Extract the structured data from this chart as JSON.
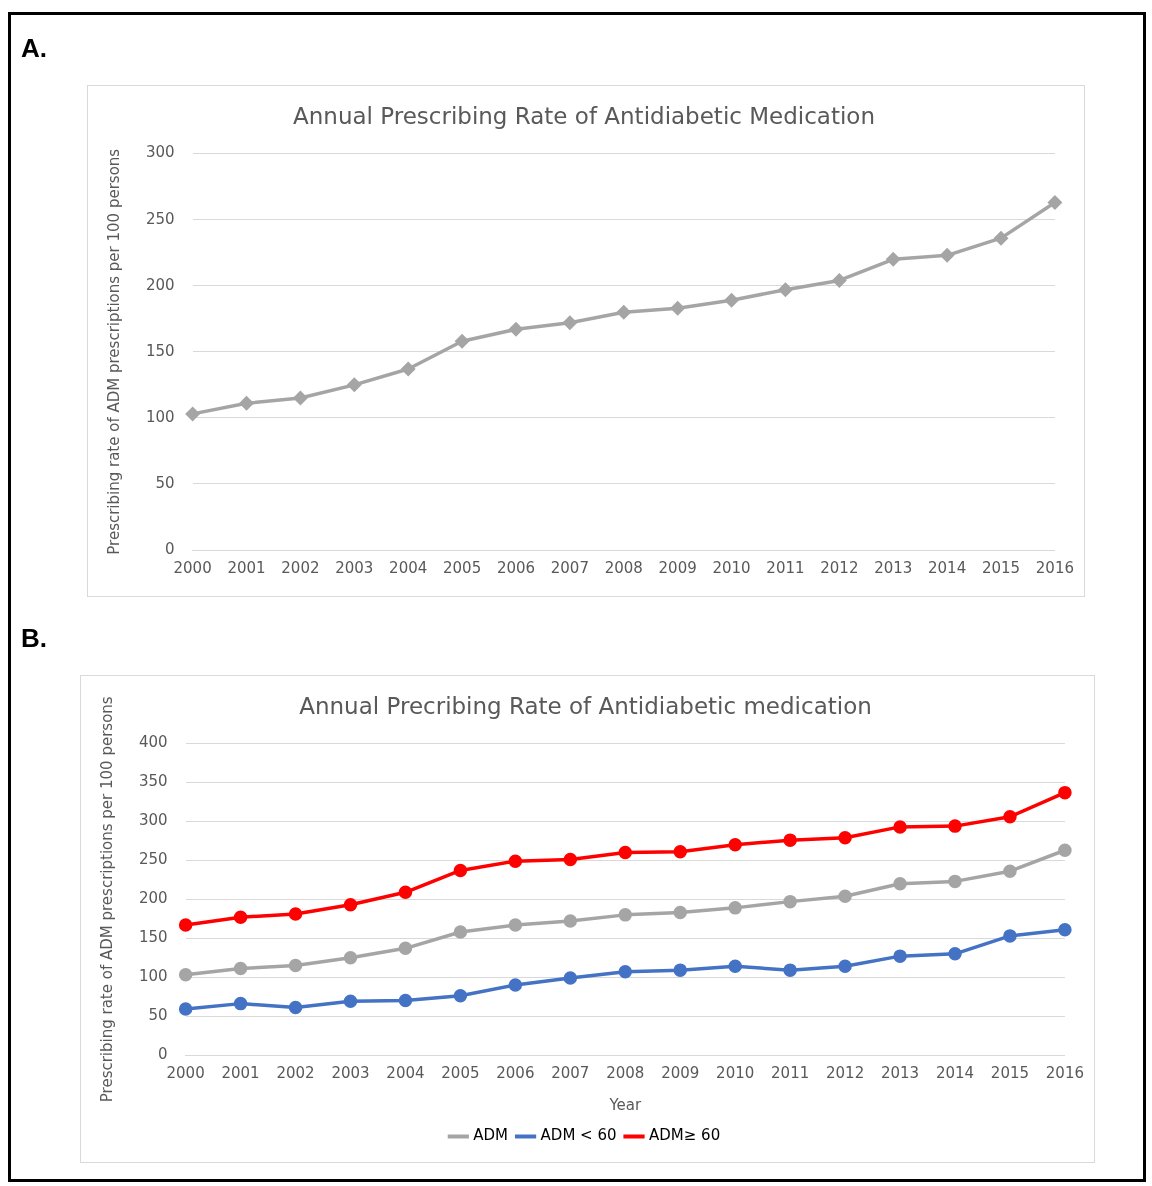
{
  "chart_data": [
    {
      "type": "line",
      "title": "Annual Prescribing Rate of Antidiabetic Medication",
      "ylabel": "Prescribing rate of ADM prescriptions per 100 persons",
      "annotations": [
        "A."
      ],
      "categories": [
        "2000",
        "2001",
        "2002",
        "2003",
        "2004",
        "2005",
        "2006",
        "2007",
        "2008",
        "2009",
        "2010",
        "2011",
        "2012",
        "2013",
        "2014",
        "2015",
        "2016"
      ],
      "series": [
        {
          "color": "#a5a5a5",
          "values": [
            103,
            111,
            115,
            125,
            137,
            158,
            167,
            172,
            180,
            183,
            189,
            197,
            204,
            220,
            223,
            236,
            263
          ]
        }
      ],
      "ylim": [
        0,
        300
      ],
      "yticks": [
        0,
        50,
        100,
        150,
        200,
        250,
        300
      ],
      "grid": "y",
      "marker": "diamond",
      "line_style": "solid"
    },
    {
      "type": "line",
      "title": "Annual Precribing Rate of Antidiabetic medication",
      "xlabel": "Year",
      "ylabel": "Prescribing rate of ADM prescriptions per 100 persons",
      "annotations": [
        "B."
      ],
      "categories": [
        "2000",
        "2001",
        "2002",
        "2003",
        "2004",
        "2005",
        "2006",
        "2007",
        "2008",
        "2009",
        "2010",
        "2011",
        "2012",
        "2013",
        "2014",
        "2015",
        "2016"
      ],
      "series": [
        {
          "name": "ADM",
          "color": "#a5a5a5",
          "values": [
            103,
            111,
            115,
            125,
            137,
            158,
            167,
            172,
            180,
            183,
            189,
            197,
            204,
            220,
            223,
            236,
            263
          ]
        },
        {
          "name": "ADM < 60",
          "color": "#4472c4",
          "values": [
            59,
            66,
            61,
            69,
            70,
            76,
            90,
            99,
            107,
            109,
            114,
            109,
            114,
            127,
            130,
            153,
            161
          ]
        },
        {
          "name": "ADM≥ 60",
          "color": "#ff0000",
          "values": [
            167,
            177,
            181,
            193,
            209,
            237,
            249,
            251,
            260,
            261,
            270,
            276,
            279,
            293,
            294,
            306,
            337
          ]
        }
      ],
      "ylim": [
        0,
        400
      ],
      "yticks": [
        0,
        50,
        100,
        150,
        200,
        250,
        300,
        350,
        400
      ],
      "grid": "y",
      "legend": "bottom",
      "marker": "circle",
      "line_style": "solid"
    }
  ]
}
